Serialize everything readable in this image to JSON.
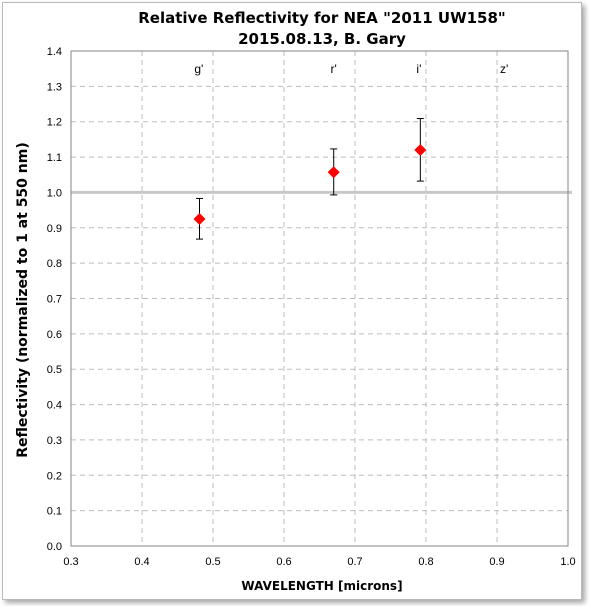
{
  "chart_data": {
    "type": "scatter",
    "title": "Relative Reflectivity for NEA \"2011 UW158\"",
    "subtitle": "2015.08.13, B. Gary",
    "xlabel": "WAVELENGTH [microns]",
    "ylabel": "Reflectivity (normalized to 1 at 550 nm)",
    "xlim": [
      0.3,
      1.0
    ],
    "ylim": [
      0.0,
      1.4
    ],
    "x_ticks": [
      "0.3",
      "0.4",
      "0.5",
      "0.6",
      "0.7",
      "0.8",
      "0.9",
      "1.0"
    ],
    "y_ticks": [
      "0.0",
      "0.1",
      "0.2",
      "0.3",
      "0.4",
      "0.5",
      "0.6",
      "0.7",
      "0.8",
      "0.9",
      "1.0",
      "1.1",
      "1.2",
      "1.3",
      "1.4"
    ],
    "grid": true,
    "reference_line_y": 1.0,
    "band_labels": [
      {
        "text": "g'",
        "x": 0.48
      },
      {
        "text": "r'",
        "x": 0.67
      },
      {
        "text": "i'",
        "x": 0.79
      },
      {
        "text": "z'",
        "x": 0.91
      }
    ],
    "points": [
      {
        "x": 0.481,
        "y": 0.925,
        "err_low": 0.868,
        "err_high": 0.983
      },
      {
        "x": 0.67,
        "y": 1.057,
        "err_low": 0.993,
        "err_high": 1.123
      },
      {
        "x": 0.792,
        "y": 1.12,
        "err_low": 1.032,
        "err_high": 1.209
      }
    ],
    "marker_color": "#ff0000",
    "reference_line_color": "#c8c8c8"
  }
}
